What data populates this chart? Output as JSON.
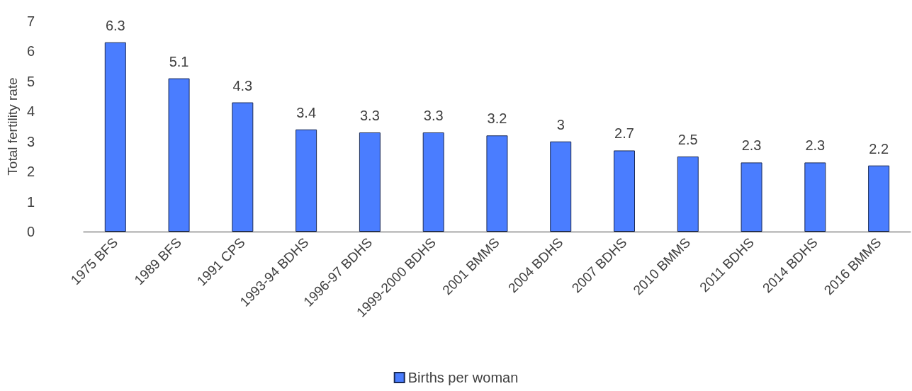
{
  "chart_data": {
    "type": "bar",
    "ylabel": "Total fertility rate",
    "categories": [
      "1975 BFS",
      "1989 BFS",
      "1991 CPS",
      "1993-94 BDHS",
      "1996-97 BDHS",
      "1999-2000 BDHS",
      "2001 BMMS",
      "2004 BDHS",
      "2007 BDHS",
      "2010 BMMS",
      "2011 BDHS",
      "2014 BDHS",
      "2016 BMMS"
    ],
    "series": [
      {
        "name": "Births per woman",
        "color": "#4a7dff",
        "values": [
          6.3,
          5.1,
          4.3,
          3.4,
          3.3,
          3.3,
          3.2,
          3,
          2.7,
          2.5,
          2.3,
          2.3,
          2.2
        ]
      }
    ],
    "ylim": [
      0,
      7
    ],
    "yticks": [
      0,
      1,
      2,
      3,
      4,
      5,
      6,
      7
    ],
    "grid": false,
    "legend": "bottom",
    "data_labels": true
  }
}
